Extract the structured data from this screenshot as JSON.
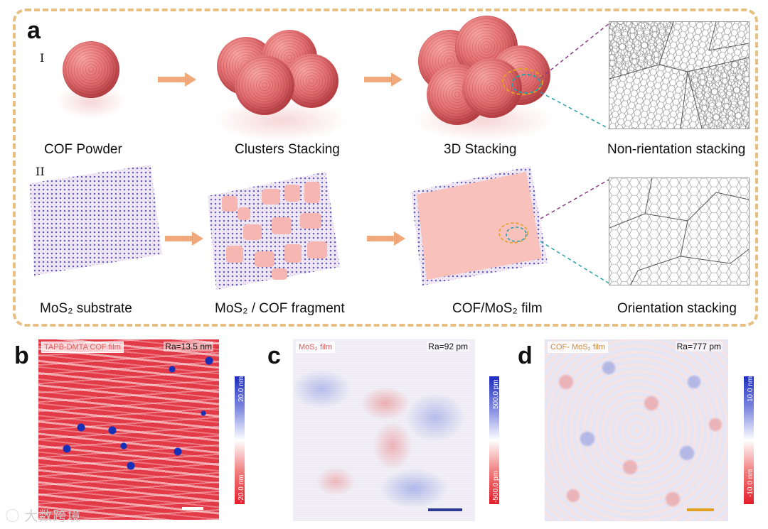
{
  "panel_a": {
    "letter": "a",
    "row1_marker": "I",
    "row2_marker": "II",
    "row1_captions": [
      "COF Powder",
      "Clusters Stacking",
      "3D Stacking",
      "Non-rientation stacking"
    ],
    "row2_captions": [
      "MoS₂ substrate",
      "MoS₂ / COF fragment",
      "COF/MoS₂ film",
      "Orientation stacking"
    ]
  },
  "panel_b": {
    "letter": "b",
    "label": "TAPB-DMTA COF film",
    "ra": "Ra=13.5 nm",
    "cbar_top": "20.0 nm",
    "cbar_bottom": "-20.0 nm",
    "scalebar_color": "#ffffff"
  },
  "panel_c": {
    "letter": "c",
    "label": "MoS₂ film",
    "ra": "Ra=92 pm",
    "cbar_top": "500.0 pm",
    "cbar_bottom": "-500.0 pm",
    "scalebar_color": "#2b3a8f"
  },
  "panel_d": {
    "letter": "d",
    "label": "COF- MoS₂ film",
    "ra": "Ra=777 pm",
    "cbar_top": "10.0 nm",
    "cbar_bottom": "-10.0 nm",
    "scalebar_color": "#e0a020"
  },
  "colors": {
    "frame": "#e8bf82",
    "arrow": "#f0a97a",
    "cof": "#e8797a",
    "mos2": "#6a5db0"
  },
  "watermark": "大数跨境"
}
